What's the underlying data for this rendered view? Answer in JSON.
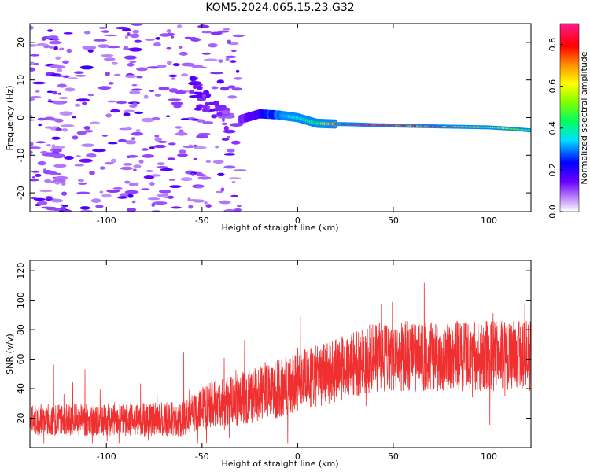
{
  "title": "KOM5.2024.065.15.23.G32",
  "chart_data": [
    {
      "type": "heatmap",
      "xlabel": "Height of straight line (km)",
      "ylabel": "Frequency (Hz)",
      "xlim": [
        -140,
        122
      ],
      "ylim": [
        -25,
        25
      ],
      "x_ticks": [
        -100,
        -50,
        0,
        50,
        100
      ],
      "y_ticks": [
        -20,
        -10,
        0,
        10,
        20
      ],
      "colorbar": {
        "label": "Normalized spectral amplitude",
        "ticks": [
          0.0,
          0.2,
          0.4,
          0.6,
          0.8
        ],
        "range": [
          0,
          0.9
        ]
      },
      "trace": {
        "x": [
          -30,
          -20,
          -10,
          0,
          10,
          20,
          30,
          40,
          50,
          60,
          70,
          80,
          90,
          100,
          110,
          122
        ],
        "freq": [
          -0.5,
          1.0,
          0.7,
          0.0,
          -1.5,
          -1.7,
          -1.8,
          -2.0,
          -2.1,
          -2.2,
          -2.3,
          -2.4,
          -2.5,
          -2.6,
          -2.9,
          -3.4
        ],
        "amplitude": [
          0.12,
          0.2,
          0.3,
          0.4,
          0.45,
          0.75,
          0.9,
          0.85,
          0.8,
          0.75,
          0.75,
          0.7,
          0.6,
          0.6,
          0.55,
          0.45
        ]
      },
      "burst": {
        "x": [
          -55,
          -50,
          -45,
          -40,
          -35
        ],
        "freq": [
          9,
          5,
          3,
          1,
          -3
        ],
        "amplitude": [
          0.15,
          0.12,
          0.12,
          0.1,
          0.1
        ]
      }
    },
    {
      "type": "line",
      "xlabel": "Height of straight line (km)",
      "ylabel": "SNR (v/v)",
      "xlim": [
        -140,
        122
      ],
      "ylim": [
        0,
        127
      ],
      "x_ticks": [
        -100,
        -50,
        0,
        50,
        100
      ],
      "y_ticks": [
        20,
        40,
        60,
        80,
        100,
        120
      ],
      "color": "#f03030",
      "trend": {
        "x": [
          -140,
          -100,
          -60,
          -45,
          -30,
          -10,
          0,
          20,
          40,
          60,
          80,
          100,
          122
        ],
        "mean": [
          19,
          19,
          19,
          30,
          33,
          40,
          45,
          52,
          62,
          62,
          62,
          62,
          62
        ],
        "spread": [
          11,
          11,
          12,
          16,
          18,
          20,
          20,
          22,
          24,
          24,
          24,
          24,
          24
        ]
      }
    }
  ]
}
